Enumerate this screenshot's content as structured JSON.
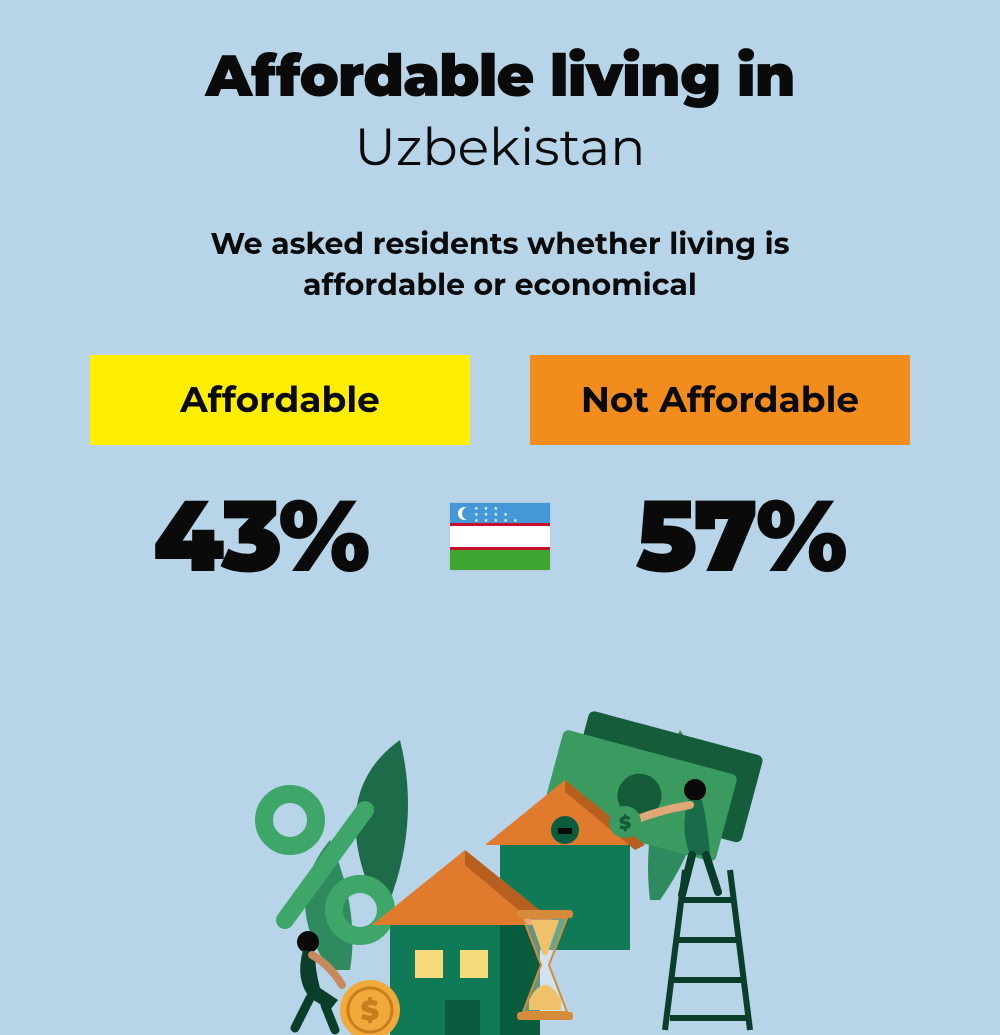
{
  "title_line1": "Affordable living in",
  "title_line2": "Uzbekistan",
  "subtitle_line1": "We asked residents whether living is",
  "subtitle_line2": "affordable or economical",
  "labels": {
    "affordable": {
      "text": "Affordable",
      "bg": "#ffee00"
    },
    "not_affordable": {
      "text": "Not Affordable",
      "bg": "#f28c1c"
    }
  },
  "percents": {
    "affordable": "43%",
    "not_affordable": "57%"
  },
  "flag": {
    "blue": "#4498d8",
    "green": "#3fa531",
    "moon_cut": "#4498d8"
  },
  "colors": {
    "bg": "#b8d4e8",
    "text": "#0a0a0a",
    "leaf_dark": "#1e6b4a",
    "leaf_light": "#2f8a5f",
    "house_wall": "#0f7a55",
    "house_wall_dark": "#0a5c3f",
    "roof": "#e07b2e",
    "roof_dark": "#b65f1f",
    "window": "#f5d97a",
    "percent_sign": "#3da668",
    "money_dark": "#145c3a",
    "money_light": "#3a9a5f",
    "coin": "#f2a93b",
    "coin_dark": "#c77f1e",
    "hourglass_frame": "#d68b3a",
    "hourglass_sand": "#f0c06a",
    "person1": "#0a3d2a",
    "person1_skin": "#c78a5e",
    "person2": "#1a6b4a",
    "person2_skin": "#e0a878",
    "ladder": "#0a3d2a"
  }
}
